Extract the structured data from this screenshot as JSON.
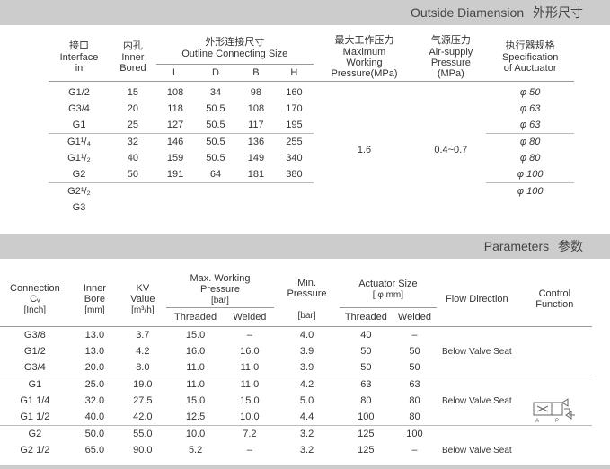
{
  "section1": {
    "title_en": "Outside Diamension",
    "title_cn": "外形尺寸",
    "headers": {
      "interface_cn": "接口",
      "interface_en": "Interface",
      "interface_unit": "in",
      "inner_cn": "内孔",
      "inner_en": "Inner",
      "inner_unit": "Bored",
      "outline_cn": "外形连接尺寸",
      "outline_en": "Outline Connecting Size",
      "sub_L": "L",
      "sub_D": "D",
      "sub_B": "B",
      "sub_H": "H",
      "max_cn": "最大工作压力",
      "max_en1": "Maximum",
      "max_en2": "Working",
      "max_unit": "Pressure(MPa)",
      "air_cn": "气源压力",
      "air_en1": "Air-supply",
      "air_en2": "Pressure",
      "air_unit": "(MPa)",
      "act_cn": "执行器规格",
      "act_en1": "Specification",
      "act_en2": "of Auctuator"
    },
    "max_val": "1.6",
    "air_val": "0.4~0.7",
    "rows": [
      {
        "if": "G1/2",
        "inner": "15",
        "L": "108",
        "D": "34",
        "B": "98",
        "H": "160",
        "act": "φ 50",
        "sep": false
      },
      {
        "if": "G3/4",
        "inner": "20",
        "L": "118",
        "D": "50.5",
        "B": "108",
        "H": "170",
        "act": "φ 63",
        "sep": false
      },
      {
        "if": "G1",
        "inner": "25",
        "L": "127",
        "D": "50.5",
        "B": "117",
        "H": "195",
        "act": "φ 63",
        "sep": false
      },
      {
        "if": "G1¹/₄",
        "inner": "32",
        "L": "146",
        "D": "50.5",
        "B": "136",
        "H": "255",
        "act": "φ 80",
        "sep": true
      },
      {
        "if": "G1¹/₂",
        "inner": "40",
        "L": "159",
        "D": "50.5",
        "B": "149",
        "H": "340",
        "act": "φ 80",
        "sep": false
      },
      {
        "if": "G2",
        "inner": "50",
        "L": "191",
        "D": "64",
        "B": "181",
        "H": "380",
        "act": "φ 100",
        "sep": false
      },
      {
        "if": "G2¹/₂",
        "inner": "",
        "L": "",
        "D": "",
        "B": "",
        "H": "",
        "act": "φ 100",
        "sep": true
      },
      {
        "if": "G3",
        "inner": "",
        "L": "",
        "D": "",
        "B": "",
        "H": "",
        "act": "",
        "sep": false
      }
    ]
  },
  "section2": {
    "title_en": "Parameters",
    "title_cn": "参数",
    "headers": {
      "conn": "Connection Cᵥ",
      "conn_unit": "[Inch]",
      "inner": "Inner Bore",
      "inner_unit": "[mm]",
      "kv": "KV Value",
      "kv_unit": "[m³/h]",
      "maxwp": "Max. Working Pressure",
      "maxwp_unit": "[bar]",
      "threaded": "Threaded",
      "welded": "Welded",
      "minp": "Min. Pressure",
      "minp_unit": "[bar]",
      "act": "Actuator Size",
      "act_unit": "[ φ mm]",
      "flow": "Flow Direction",
      "ctrl": "Control Function"
    },
    "rows": [
      {
        "c": "G3/8",
        "ib": "13.0",
        "kv": "3.7",
        "mt": "15.0",
        "mw": "–",
        "mp": "4.0",
        "at": "40",
        "aw": "–",
        "sep": false
      },
      {
        "c": "G1/2",
        "ib": "13.0",
        "kv": "4.2",
        "mt": "16.0",
        "mw": "16.0",
        "mp": "3.9",
        "at": "50",
        "aw": "50",
        "sep": false
      },
      {
        "c": "G3/4",
        "ib": "20.0",
        "kv": "8.0",
        "mt": "11.0",
        "mw": "11.0",
        "mp": "3.9",
        "at": "50",
        "aw": "50",
        "sep": false
      },
      {
        "c": "G1",
        "ib": "25.0",
        "kv": "19.0",
        "mt": "11.0",
        "mw": "11.0",
        "mp": "4.2",
        "at": "63",
        "aw": "63",
        "sep": true
      },
      {
        "c": "G1 1/4",
        "ib": "32.0",
        "kv": "27.5",
        "mt": "15.0",
        "mw": "15.0",
        "mp": "5.0",
        "at": "80",
        "aw": "80",
        "sep": false
      },
      {
        "c": "G1 1/2",
        "ib": "40.0",
        "kv": "42.0",
        "mt": "12.5",
        "mw": "10.0",
        "mp": "4.4",
        "at": "100",
        "aw": "80",
        "sep": false
      },
      {
        "c": "G2",
        "ib": "50.0",
        "kv": "55.0",
        "mt": "10.0",
        "mw": "7.2",
        "mp": "3.2",
        "at": "125",
        "aw": "100",
        "sep": true
      },
      {
        "c": "G2 1/2",
        "ib": "65.0",
        "kv": "90.0",
        "mt": "5.2",
        "mw": "–",
        "mp": "3.2",
        "at": "125",
        "aw": "–",
        "sep": false
      }
    ],
    "flow_labels": [
      "Below Valve Seat",
      "Below Valve Seat",
      "Below Valve Seat"
    ]
  }
}
